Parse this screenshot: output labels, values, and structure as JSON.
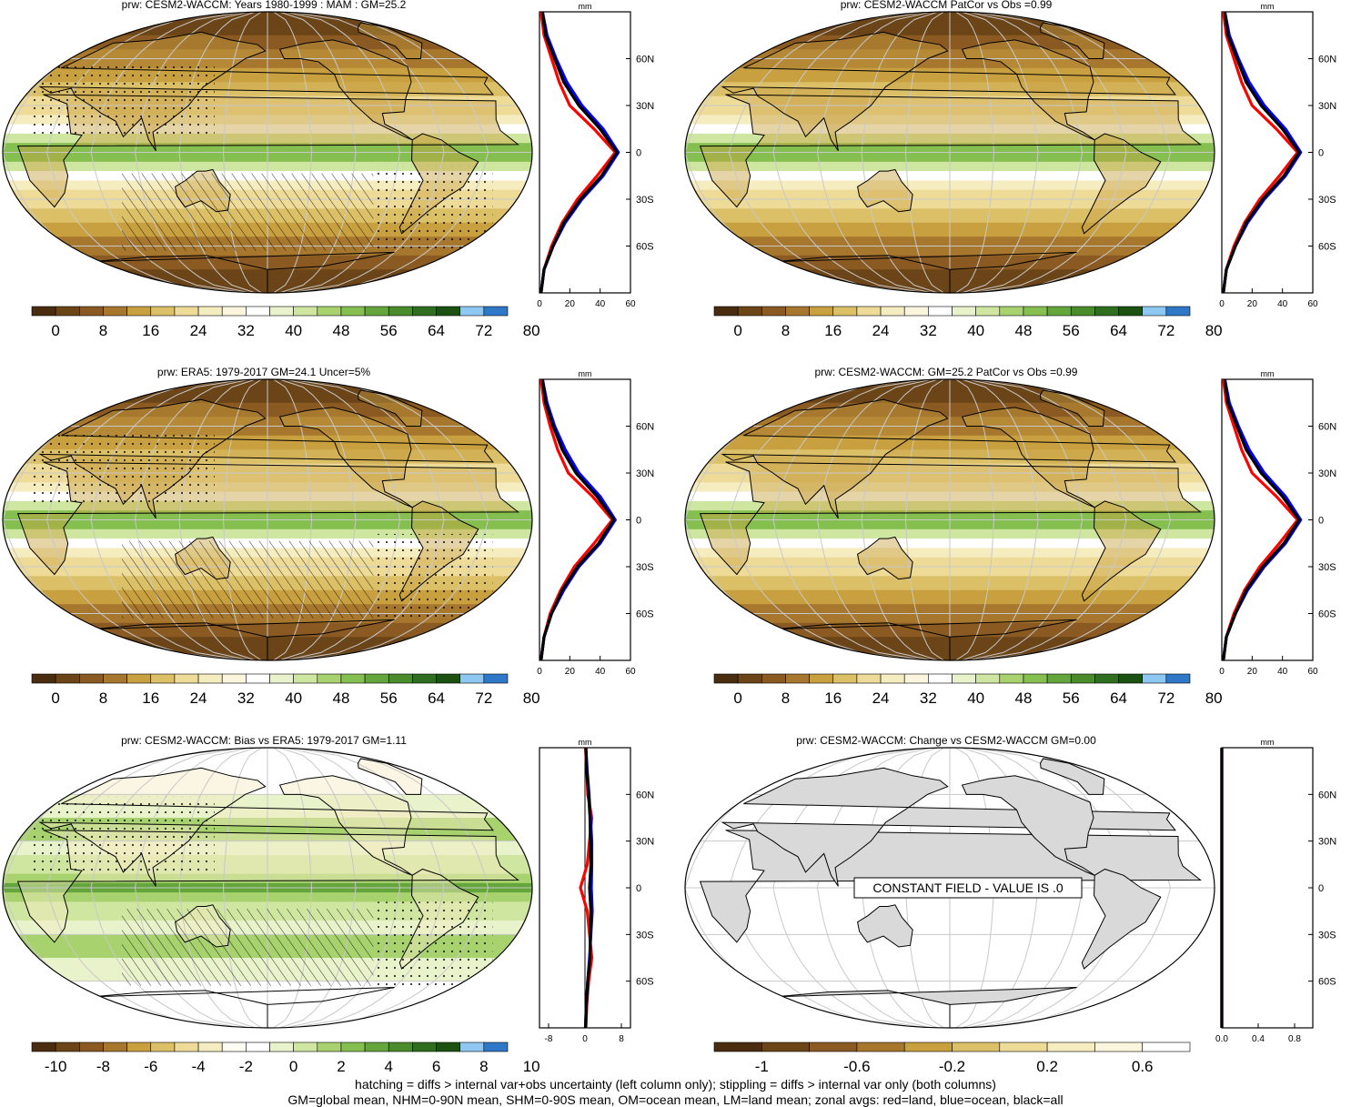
{
  "colors": {
    "precip_levels": [
      "#4a2d0f",
      "#6b4418",
      "#8a5a22",
      "#a8772e",
      "#c8a040",
      "#dcc068",
      "#eedb98",
      "#f5ecc0",
      "#faf5dc",
      "#ffffff",
      "#e8f3cc",
      "#cfe6a0",
      "#a7d26e",
      "#85bf50",
      "#65a63c",
      "#4a8c2c",
      "#2f6e1e",
      "#1b5212",
      "#8ec8f0",
      "#2f78c8"
    ],
    "bias_levels": [
      "#4a2d0f",
      "#6b4418",
      "#8a5a22",
      "#a8772e",
      "#c8a040",
      "#dcc068",
      "#eedb98",
      "#f5ecc0",
      "#fdfcf2",
      "#ffffff",
      "#e8f3cc",
      "#cfe6a0",
      "#a7d26e",
      "#85bf50",
      "#65a63c",
      "#4a8c2c",
      "#2f6e1e",
      "#1b5212",
      "#8ec8f0",
      "#2f78c8"
    ],
    "change_levels": [
      "#4a2d0f",
      "#6b4418",
      "#8a5a22",
      "#a8772e",
      "#c8a040",
      "#dcc068",
      "#eedb98",
      "#f5ecc0",
      "#faf5dc",
      "#ffffff"
    ],
    "land_line": "#ff0000",
    "ocean_line": "#0000ff",
    "all_line": "#000000"
  },
  "zonal_lat_labels": [
    "60N",
    "30N",
    "0",
    "30S",
    "60S"
  ],
  "zonal_unit": "mm",
  "panels": [
    {
      "id": "top-left",
      "title": "prw: CESM2-WACCM: Years 1980-1999 : MAM : GM=25.2",
      "map_kind": "precip",
      "hatching": true,
      "colorbar_labels": [
        "0",
        "8",
        "16",
        "24",
        "32",
        "40",
        "48",
        "56",
        "64",
        "72",
        "80"
      ],
      "zonal_x_labels": [
        "0",
        "20",
        "40",
        "60"
      ]
    },
    {
      "id": "top-right",
      "title": "prw: CESM2-WACCM PatCor vs Obs =0.99",
      "map_kind": "precip",
      "hatching": false,
      "colorbar_labels": [
        "0",
        "8",
        "16",
        "24",
        "32",
        "40",
        "48",
        "56",
        "64",
        "72",
        "80"
      ],
      "zonal_x_labels": [
        "0",
        "20",
        "40",
        "60"
      ]
    },
    {
      "id": "middle-left",
      "title": "prw: ERA5: 1979-2017 GM=24.1 Uncer=5%",
      "map_kind": "precip",
      "hatching": true,
      "colorbar_labels": [
        "0",
        "8",
        "16",
        "24",
        "32",
        "40",
        "48",
        "56",
        "64",
        "72",
        "80"
      ],
      "zonal_x_labels": [
        "0",
        "20",
        "40",
        "60"
      ]
    },
    {
      "id": "middle-right",
      "title": "prw: CESM2-WACCM: GM=25.2 PatCor vs Obs =0.99",
      "map_kind": "precip",
      "hatching": false,
      "colorbar_labels": [
        "0",
        "8",
        "16",
        "24",
        "32",
        "40",
        "48",
        "56",
        "64",
        "72",
        "80"
      ],
      "zonal_x_labels": [
        "0",
        "20",
        "40",
        "60"
      ]
    },
    {
      "id": "bottom-left",
      "title": "prw: CESM2-WACCM: Bias vs ERA5: 1979-2017 GM=1.11",
      "map_kind": "bias",
      "hatching": true,
      "colorbar_labels": [
        "-10",
        "-8",
        "-6",
        "-4",
        "-2",
        "0",
        "2",
        "4",
        "6",
        "8",
        "10"
      ],
      "zonal_x_labels": [
        "-8",
        "0",
        "8"
      ]
    },
    {
      "id": "bottom-right",
      "title": "prw: CESM2-WACCM: Change vs CESM2-WACCM GM=0.00",
      "map_kind": "constant",
      "hatching": false,
      "constant_label": "CONSTANT FIELD - VALUE IS .0",
      "colorbar_labels": [
        "-1",
        "-0.6",
        "-0.2",
        "0.2",
        "0.6"
      ],
      "zonal_x_labels": [
        "0.0",
        "0.4",
        "0.8"
      ]
    }
  ],
  "chart_data": [
    {
      "type": "line",
      "title": "prw: CESM2-WACCM: Years 1980-1999 : MAM : GM=25.2",
      "xlabel": "mm",
      "xlim": [
        0,
        60
      ],
      "ylim": [
        -90,
        90
      ],
      "y": [
        -90,
        -75,
        -60,
        -45,
        -30,
        -15,
        0,
        15,
        30,
        45,
        60,
        75,
        90
      ],
      "series": [
        {
          "name": "land",
          "color": "#ff0000",
          "values": [
            1,
            3,
            8,
            15,
            25,
            38,
            50,
            36,
            20,
            13,
            8,
            3,
            1
          ]
        },
        {
          "name": "ocean",
          "color": "#0000ff",
          "values": [
            1,
            3,
            9,
            17,
            28,
            42,
            52,
            42,
            28,
            18,
            11,
            5,
            2
          ]
        },
        {
          "name": "all",
          "color": "#000000",
          "values": [
            1,
            3,
            9,
            16,
            27,
            41,
            51,
            40,
            26,
            16,
            10,
            4,
            2
          ]
        }
      ]
    },
    {
      "type": "line",
      "title": "prw: CESM2-WACCM PatCor vs Obs =0.99",
      "xlabel": "mm",
      "xlim": [
        0,
        60
      ],
      "ylim": [
        -90,
        90
      ],
      "y": [
        -90,
        -75,
        -60,
        -45,
        -30,
        -15,
        0,
        15,
        30,
        45,
        60,
        75,
        90
      ],
      "series": [
        {
          "name": "land",
          "color": "#ff0000",
          "values": [
            1,
            3,
            8,
            15,
            25,
            38,
            50,
            36,
            20,
            13,
            8,
            3,
            1
          ]
        },
        {
          "name": "ocean",
          "color": "#0000ff",
          "values": [
            1,
            3,
            9,
            17,
            28,
            42,
            52,
            42,
            28,
            18,
            11,
            5,
            2
          ]
        },
        {
          "name": "all",
          "color": "#000000",
          "values": [
            1,
            3,
            9,
            16,
            27,
            41,
            51,
            40,
            26,
            16,
            10,
            4,
            2
          ]
        }
      ]
    },
    {
      "type": "line",
      "title": "prw: ERA5: 1979-2017 GM=24.1 Uncer=5%",
      "xlabel": "mm",
      "xlim": [
        0,
        60
      ],
      "ylim": [
        -90,
        90
      ],
      "y": [
        -90,
        -75,
        -60,
        -45,
        -30,
        -15,
        0,
        15,
        30,
        45,
        60,
        75,
        90
      ],
      "series": [
        {
          "name": "land",
          "color": "#ff0000",
          "values": [
            1,
            3,
            7,
            14,
            23,
            36,
            48,
            35,
            19,
            12,
            7,
            3,
            1
          ]
        },
        {
          "name": "ocean",
          "color": "#0000ff",
          "values": [
            1,
            3,
            8,
            16,
            26,
            40,
            50,
            40,
            26,
            17,
            10,
            5,
            2
          ]
        },
        {
          "name": "all",
          "color": "#000000",
          "values": [
            1,
            3,
            8,
            15,
            25,
            39,
            49,
            38,
            24,
            15,
            9,
            4,
            2
          ]
        }
      ]
    },
    {
      "type": "line",
      "title": "prw: CESM2-WACCM: GM=25.2 PatCor vs Obs =0.99",
      "xlabel": "mm",
      "xlim": [
        0,
        60
      ],
      "ylim": [
        -90,
        90
      ],
      "y": [
        -90,
        -75,
        -60,
        -45,
        -30,
        -15,
        0,
        15,
        30,
        45,
        60,
        75,
        90
      ],
      "series": [
        {
          "name": "land",
          "color": "#ff0000",
          "values": [
            1,
            3,
            8,
            15,
            25,
            38,
            50,
            36,
            20,
            13,
            8,
            3,
            1
          ]
        },
        {
          "name": "ocean",
          "color": "#0000ff",
          "values": [
            1,
            3,
            9,
            17,
            28,
            42,
            52,
            42,
            28,
            18,
            11,
            5,
            2
          ]
        },
        {
          "name": "all",
          "color": "#000000",
          "values": [
            1,
            3,
            9,
            16,
            27,
            41,
            51,
            40,
            26,
            16,
            10,
            4,
            2
          ]
        }
      ]
    },
    {
      "type": "line",
      "title": "prw: CESM2-WACCM: Bias vs ERA5: 1979-2017 GM=1.11",
      "xlabel": "mm",
      "xlim": [
        -10,
        10
      ],
      "ylim": [
        -90,
        90
      ],
      "y": [
        -90,
        -75,
        -60,
        -45,
        -30,
        -15,
        0,
        15,
        30,
        45,
        60,
        75,
        90
      ],
      "series": [
        {
          "name": "land",
          "color": "#ff0000",
          "values": [
            0.2,
            0.4,
            0.8,
            1.5,
            1.0,
            0.5,
            -1.0,
            0.5,
            1.0,
            1.5,
            0.6,
            0.4,
            0.1
          ]
        },
        {
          "name": "ocean",
          "color": "#0000ff",
          "values": [
            0.1,
            0.3,
            0.6,
            1.0,
            1.3,
            1.6,
            1.4,
            1.5,
            1.5,
            1.2,
            0.9,
            0.5,
            0.2
          ]
        },
        {
          "name": "all",
          "color": "#000000",
          "values": [
            0.1,
            0.3,
            0.6,
            1.1,
            1.2,
            1.3,
            1.0,
            1.3,
            1.2,
            1.1,
            0.8,
            0.4,
            0.2
          ]
        }
      ]
    },
    {
      "type": "line",
      "title": "prw: CESM2-WACCM: Change vs CESM2-WACCM GM=0.00",
      "xlabel": "mm",
      "xlim": [
        0,
        1
      ],
      "ylim": [
        -90,
        90
      ],
      "y": [
        -90,
        90
      ],
      "series": [
        {
          "name": "land",
          "color": "#ff0000",
          "values": [
            0,
            0
          ]
        },
        {
          "name": "ocean",
          "color": "#0000ff",
          "values": [
            0,
            0
          ]
        },
        {
          "name": "all",
          "color": "#000000",
          "values": [
            0,
            0
          ]
        }
      ]
    }
  ],
  "footer": {
    "line1": "hatching = diffs > internal var+obs uncertainty (left column only); stippling = diffs > internal var only (both columns)",
    "line2": "GM=global mean, NHM=0-90N mean, SHM=0-90S mean, OM=ocean mean, LM=land mean; zonal avgs: red=land, blue=ocean, black=all"
  }
}
